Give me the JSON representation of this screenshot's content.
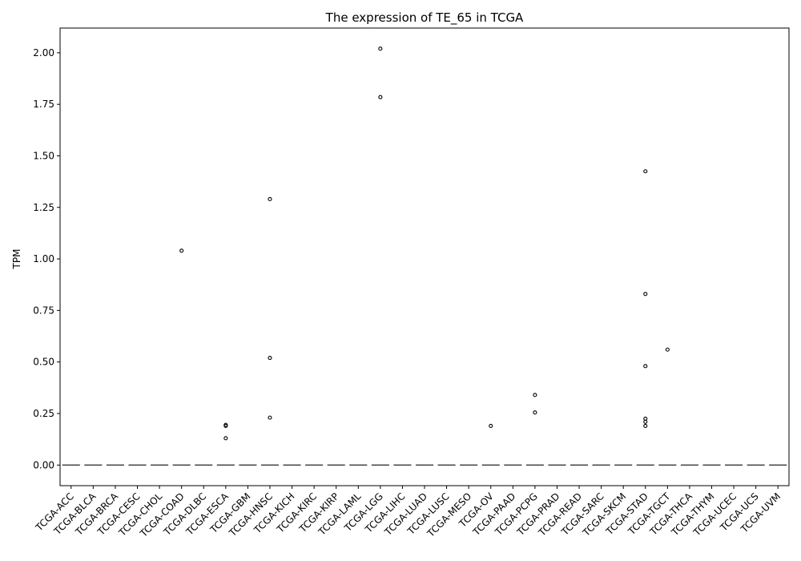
{
  "chart_data": {
    "type": "box",
    "title": "The expression of TE_65 in TCGA",
    "xlabel": "",
    "ylabel": "TPM",
    "ylim": [
      -0.1,
      2.12
    ],
    "yticks": [
      0.0,
      0.25,
      0.5,
      0.75,
      1.0,
      1.25,
      1.5,
      1.75,
      2.0
    ],
    "ytick_labels": [
      "0.00",
      "0.25",
      "0.50",
      "0.75",
      "1.00",
      "1.25",
      "1.50",
      "1.75",
      "2.00"
    ],
    "grid": false,
    "categories": [
      "TCGA-ACC",
      "TCGA-BLCA",
      "TCGA-BRCA",
      "TCGA-CESC",
      "TCGA-CHOL",
      "TCGA-COAD",
      "TCGA-DLBC",
      "TCGA-ESCA",
      "TCGA-GBM",
      "TCGA-HNSC",
      "TCGA-KICH",
      "TCGA-KIRC",
      "TCGA-KIRP",
      "TCGA-LAML",
      "TCGA-LGG",
      "TCGA-LIHC",
      "TCGA-LUAD",
      "TCGA-LUSC",
      "TCGA-MESO",
      "TCGA-OV",
      "TCGA-PAAD",
      "TCGA-PCPG",
      "TCGA-PRAD",
      "TCGA-READ",
      "TCGA-SARC",
      "TCGA-SKCM",
      "TCGA-STAD",
      "TCGA-TGCT",
      "TCGA-THCA",
      "TCGA-THYM",
      "TCGA-UCEC",
      "TCGA-UCS",
      "TCGA-UVM"
    ],
    "median": [
      0,
      0,
      0,
      0,
      0,
      0,
      0,
      0,
      0,
      0,
      0,
      0,
      0,
      0,
      0,
      0,
      0,
      0,
      0,
      0,
      0,
      0,
      0,
      0,
      0,
      0,
      0,
      0,
      0,
      0,
      0,
      0,
      0
    ],
    "outliers": [
      {
        "category": "TCGA-COAD",
        "values": [
          1.04
        ]
      },
      {
        "category": "TCGA-ESCA",
        "values": [
          0.195,
          0.19,
          0.13
        ]
      },
      {
        "category": "TCGA-HNSC",
        "values": [
          1.29,
          0.52,
          0.23
        ]
      },
      {
        "category": "TCGA-LGG",
        "values": [
          2.02,
          1.785
        ]
      },
      {
        "category": "TCGA-OV",
        "values": [
          0.19
        ]
      },
      {
        "category": "TCGA-PCPG",
        "values": [
          0.34,
          0.255
        ]
      },
      {
        "category": "TCGA-STAD",
        "values": [
          1.425,
          0.83,
          0.48,
          0.225,
          0.21,
          0.19
        ]
      },
      {
        "category": "TCGA-TGCT",
        "values": [
          0.56
        ]
      }
    ],
    "colors": {
      "median_line": "#4d4d4d",
      "outlier_edge": "#000000",
      "axes": "#000000"
    }
  }
}
